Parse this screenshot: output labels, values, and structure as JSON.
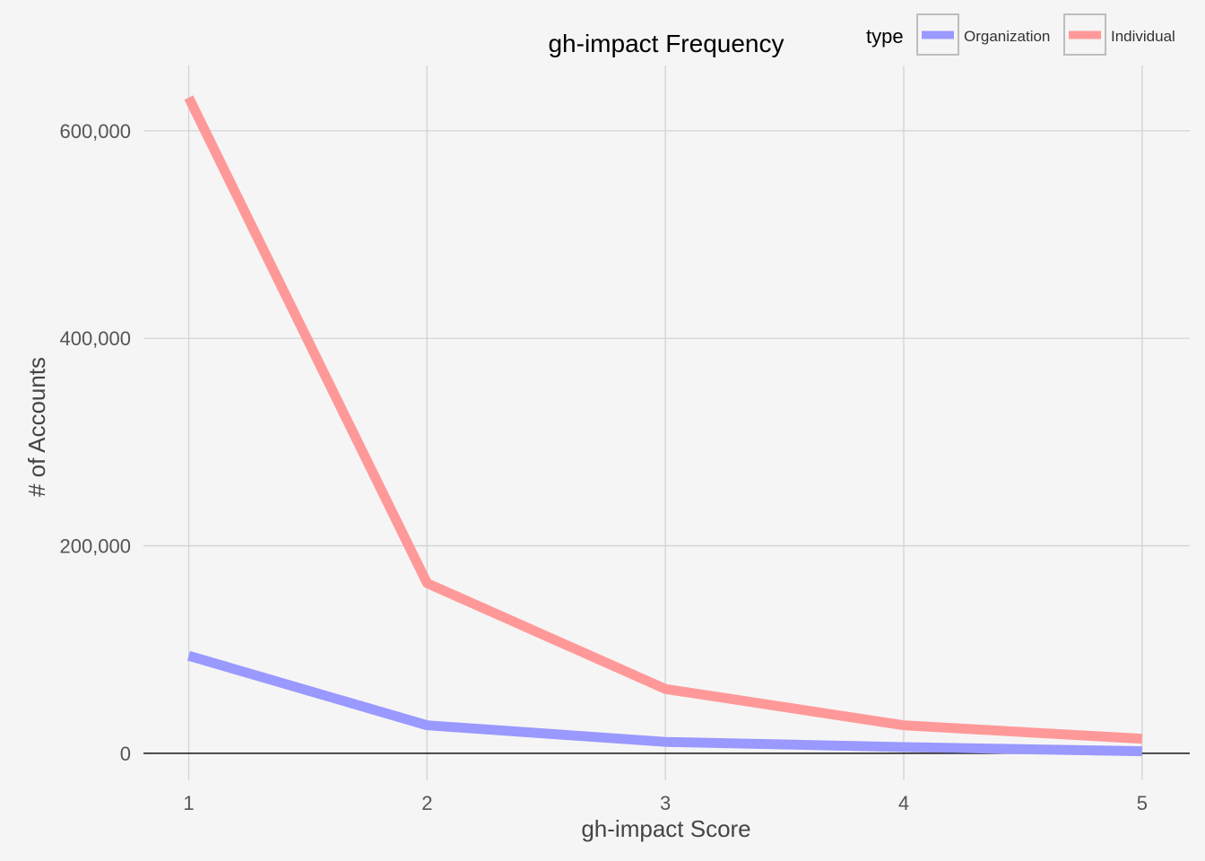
{
  "chart_data": {
    "type": "line",
    "title": "gh-impact Frequency",
    "xlabel": "gh-impact Score",
    "ylabel": "# of Accounts",
    "x": [
      1,
      2,
      3,
      4,
      5
    ],
    "x_ticks": [
      "1",
      "2",
      "3",
      "4",
      "5"
    ],
    "y_ticks": [
      {
        "value": 0,
        "label": "0"
      },
      {
        "value": 200000,
        "label": "200,000"
      },
      {
        "value": 400000,
        "label": "400,000"
      },
      {
        "value": 600000,
        "label": "600,000"
      }
    ],
    "xlim": [
      0.81,
      5.2
    ],
    "ylim": [
      -26000,
      663000
    ],
    "grid": true,
    "legend": {
      "title": "type",
      "position": "top-right"
    },
    "series": [
      {
        "name": "Organization",
        "color": "#9999FF",
        "values": [
          94000,
          27000,
          11000,
          6000,
          2000
        ]
      },
      {
        "name": "Individual",
        "color": "#FF9999",
        "values": [
          632000,
          164000,
          62000,
          27000,
          14000
        ]
      }
    ]
  }
}
